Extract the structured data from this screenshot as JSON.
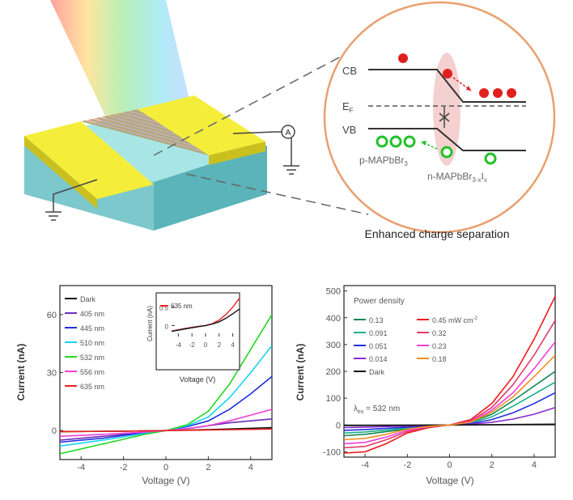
{
  "device": {
    "voltmeter_symbol": "A"
  },
  "band": {
    "cb": "CB",
    "ef_main": "E",
    "ef_sub": "F",
    "vb": "VB",
    "p_label_main": "p-MAPbBr",
    "p_label_sub": "3",
    "n_label_main": "n-MAPbBr",
    "n_label_sub1": "3-x",
    "n_label_mid": "I",
    "n_label_sub2": "x",
    "caption": "Enhanced charge separation",
    "colors": {
      "circle": "#e8a070",
      "electron": "#e02020",
      "hole": "#22c22a",
      "junction": "#f2c0c0"
    }
  },
  "chart_data": [
    {
      "type": "line",
      "xlabel": "Voltage (V)",
      "ylabel": "Current (nA)",
      "xlim": [
        -5,
        5
      ],
      "ylim": [
        -15,
        75
      ],
      "xticks": [
        -4,
        -2,
        0,
        2,
        4
      ],
      "yticks": [
        0,
        30,
        60
      ],
      "series": [
        {
          "name": "Dark",
          "color": "#111111",
          "points": [
            [
              -5,
              -0.5
            ],
            [
              -2,
              -0.3
            ],
            [
              0,
              0
            ],
            [
              2,
              0.5
            ],
            [
              5,
              1.5
            ]
          ]
        },
        {
          "name": "405 nm",
          "color": "#6a2fb8",
          "points": [
            [
              -5,
              -5
            ],
            [
              -3,
              -3
            ],
            [
              -1,
              -1
            ],
            [
              0,
              0
            ],
            [
              1,
              1
            ],
            [
              2,
              2.5
            ],
            [
              3,
              4
            ],
            [
              4,
              5
            ],
            [
              5,
              6
            ]
          ]
        },
        {
          "name": "445 nm",
          "color": "#1f30e0",
          "points": [
            [
              -5,
              -6
            ],
            [
              -3,
              -4
            ],
            [
              -1,
              -1
            ],
            [
              0,
              0
            ],
            [
              1,
              2
            ],
            [
              2,
              5
            ],
            [
              3,
              11
            ],
            [
              4,
              19
            ],
            [
              5,
              28
            ]
          ]
        },
        {
          "name": "510 nm",
          "color": "#16d4f0",
          "points": [
            [
              -5,
              -8
            ],
            [
              -3,
              -5
            ],
            [
              -1,
              -1.5
            ],
            [
              0,
              0
            ],
            [
              1,
              2.5
            ],
            [
              2,
              7
            ],
            [
              3,
              17
            ],
            [
              4,
              30
            ],
            [
              5,
              44
            ]
          ]
        },
        {
          "name": "532 nm",
          "color": "#22d822",
          "points": [
            [
              -5,
              -12
            ],
            [
              -3,
              -7
            ],
            [
              -1,
              -2
            ],
            [
              0,
              0
            ],
            [
              1,
              3
            ],
            [
              2,
              10
            ],
            [
              3,
              24
            ],
            [
              4,
              42
            ],
            [
              5,
              60
            ]
          ]
        },
        {
          "name": "556 nm",
          "color": "#f040d8",
          "points": [
            [
              -5,
              -3
            ],
            [
              -3,
              -2
            ],
            [
              -1,
              -0.8
            ],
            [
              0,
              0
            ],
            [
              1,
              1
            ],
            [
              2,
              2.5
            ],
            [
              3,
              5
            ],
            [
              4,
              8
            ],
            [
              5,
              11
            ]
          ]
        },
        {
          "name": "635 nm",
          "color": "#ee2222",
          "points": [
            [
              -5,
              -0.6
            ],
            [
              -2,
              -0.3
            ],
            [
              0,
              0
            ],
            [
              2,
              0.3
            ],
            [
              5,
              0.8
            ]
          ]
        }
      ],
      "inset": {
        "legend": "635 nm",
        "xlabel": "Voltage (V)",
        "ylabel": "Current (nA)",
        "xlim": [
          -5,
          5
        ],
        "ylim": [
          -0.3,
          0.8
        ],
        "xticks": [
          -4,
          -2,
          0,
          2,
          4
        ],
        "yticks": [
          0,
          0.5
        ],
        "series": [
          {
            "name": "635 nm",
            "color": "#ee2222",
            "points": [
              [
                -5,
                -0.15
              ],
              [
                -3,
                -0.08
              ],
              [
                -1,
                -0.02
              ],
              [
                0,
                0
              ],
              [
                1,
                0.05
              ],
              [
                2,
                0.15
              ],
              [
                3,
                0.3
              ],
              [
                4,
                0.5
              ],
              [
                5,
                0.75
              ]
            ]
          },
          {
            "name": "Dark",
            "color": "#111111",
            "points": [
              [
                -5,
                -0.16
              ],
              [
                -3,
                -0.09
              ],
              [
                -1,
                -0.03
              ],
              [
                0,
                0
              ],
              [
                1,
                0.04
              ],
              [
                2,
                0.1
              ],
              [
                3,
                0.2
              ],
              [
                4,
                0.32
              ],
              [
                5,
                0.45
              ]
            ]
          }
        ]
      }
    },
    {
      "type": "line",
      "xlabel": "Voltage (V)",
      "ylabel": "Current (nA)",
      "xlim": [
        -5,
        5
      ],
      "ylim": [
        -120,
        520
      ],
      "xticks": [
        -4,
        -2,
        0,
        2,
        4
      ],
      "yticks": [
        -100,
        0,
        100,
        200,
        300,
        400,
        500
      ],
      "legend_title": "Power density",
      "legend_unit_main": "0.45 mW cm",
      "legend_unit_sup": "-2",
      "annotation_main": "λ",
      "annotation_sub": "ex",
      "annotation_rest": " = 532 nm",
      "series": [
        {
          "name": "0.13",
          "color": "#128a52",
          "points": [
            [
              -5,
              -40
            ],
            [
              -4,
              -35
            ],
            [
              -2,
              -15
            ],
            [
              0,
              0
            ],
            [
              1,
              10
            ],
            [
              2,
              40
            ],
            [
              3,
              90
            ],
            [
              4,
              145
            ],
            [
              5,
              200
            ]
          ]
        },
        {
          "name": "0.091",
          "color": "#1aaf8a",
          "points": [
            [
              -5,
              -30
            ],
            [
              -4,
              -26
            ],
            [
              -2,
              -12
            ],
            [
              0,
              0
            ],
            [
              1,
              8
            ],
            [
              2,
              30
            ],
            [
              3,
              70
            ],
            [
              4,
              115
            ],
            [
              5,
              160
            ]
          ]
        },
        {
          "name": "0.051",
          "color": "#1f30e0",
          "points": [
            [
              -5,
              -20
            ],
            [
              -4,
              -17
            ],
            [
              -2,
              -8
            ],
            [
              0,
              0
            ],
            [
              1,
              5
            ],
            [
              2,
              20
            ],
            [
              3,
              45
            ],
            [
              4,
              80
            ],
            [
              5,
              120
            ]
          ]
        },
        {
          "name": "0.014",
          "color": "#8a2ad0",
          "points": [
            [
              -5,
              -10
            ],
            [
              -4,
              -8
            ],
            [
              -2,
              -4
            ],
            [
              0,
              0
            ],
            [
              1,
              3
            ],
            [
              2,
              10
            ],
            [
              3,
              22
            ],
            [
              4,
              40
            ],
            [
              5,
              65
            ]
          ]
        },
        {
          "name": "Dark",
          "color": "#111111",
          "points": [
            [
              -5,
              -2
            ],
            [
              -2,
              -1
            ],
            [
              0,
              0
            ],
            [
              2,
              1
            ],
            [
              5,
              3
            ]
          ]
        },
        {
          "name": "0.45 mW cm-2",
          "color": "#ee1a1a",
          "points": [
            [
              -5,
              -105
            ],
            [
              -4,
              -100
            ],
            [
              -3,
              -70
            ],
            [
              -2,
              -30
            ],
            [
              -1,
              -10
            ],
            [
              0,
              0
            ],
            [
              1,
              20
            ],
            [
              2,
              80
            ],
            [
              3,
              180
            ],
            [
              4,
              320
            ],
            [
              5,
              480
            ]
          ]
        },
        {
          "name": "0.32",
          "color": "#e43a6a",
          "points": [
            [
              -5,
              -85
            ],
            [
              -4,
              -80
            ],
            [
              -3,
              -55
            ],
            [
              -2,
              -25
            ],
            [
              -1,
              -8
            ],
            [
              0,
              0
            ],
            [
              1,
              15
            ],
            [
              2,
              65
            ],
            [
              3,
              150
            ],
            [
              4,
              260
            ],
            [
              5,
              390
            ]
          ]
        },
        {
          "name": "0.23",
          "color": "#f040d8",
          "points": [
            [
              -5,
              -70
            ],
            [
              -4,
              -65
            ],
            [
              -3,
              -45
            ],
            [
              -2,
              -20
            ],
            [
              -1,
              -6
            ],
            [
              0,
              0
            ],
            [
              1,
              12
            ],
            [
              2,
              55
            ],
            [
              3,
              120
            ],
            [
              4,
              210
            ],
            [
              5,
              310
            ]
          ]
        },
        {
          "name": "0.18",
          "color": "#f09022",
          "points": [
            [
              -5,
              -55
            ],
            [
              -4,
              -50
            ],
            [
              -3,
              -35
            ],
            [
              -2,
              -16
            ],
            [
              -1,
              -5
            ],
            [
              0,
              0
            ],
            [
              1,
              10
            ],
            [
              2,
              48
            ],
            [
              3,
              105
            ],
            [
              4,
              180
            ],
            [
              5,
              260
            ]
          ]
        }
      ]
    }
  ]
}
